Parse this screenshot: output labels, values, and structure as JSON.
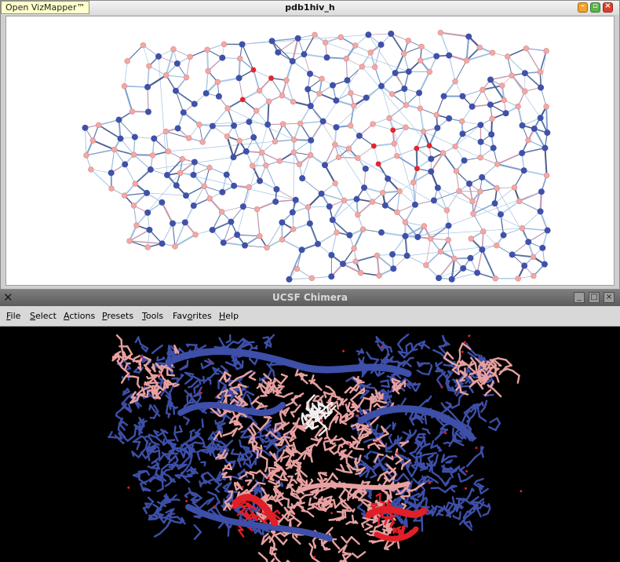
{
  "top_window": {
    "vizmapper_label": "Open VizMapper™",
    "title": "pdb1hiv_h",
    "buttons": [
      "minimize",
      "maximize",
      "close"
    ],
    "node_colors": {
      "blue": "#3f51a9",
      "pink": "#f2a9a6",
      "red": "#e3252c"
    }
  },
  "chimera": {
    "title": "UCSF Chimera",
    "menu": [
      {
        "first": "F",
        "rest": "ile"
      },
      {
        "first": "S",
        "rest": "elect"
      },
      {
        "first": "A",
        "rest": "ctions"
      },
      {
        "first": "P",
        "rest": "resets"
      },
      {
        "first": "T",
        "rest": "ools"
      },
      {
        "first": "",
        "mid": "Fav",
        "u": "o",
        "rest": "rites"
      },
      {
        "first": "H",
        "rest": "elp"
      }
    ],
    "colors": {
      "blue": "#3d4fa8",
      "pink": "#e8a0a0",
      "red": "#e01f28",
      "white": "#f0f0f0",
      "background": "#000000"
    }
  }
}
